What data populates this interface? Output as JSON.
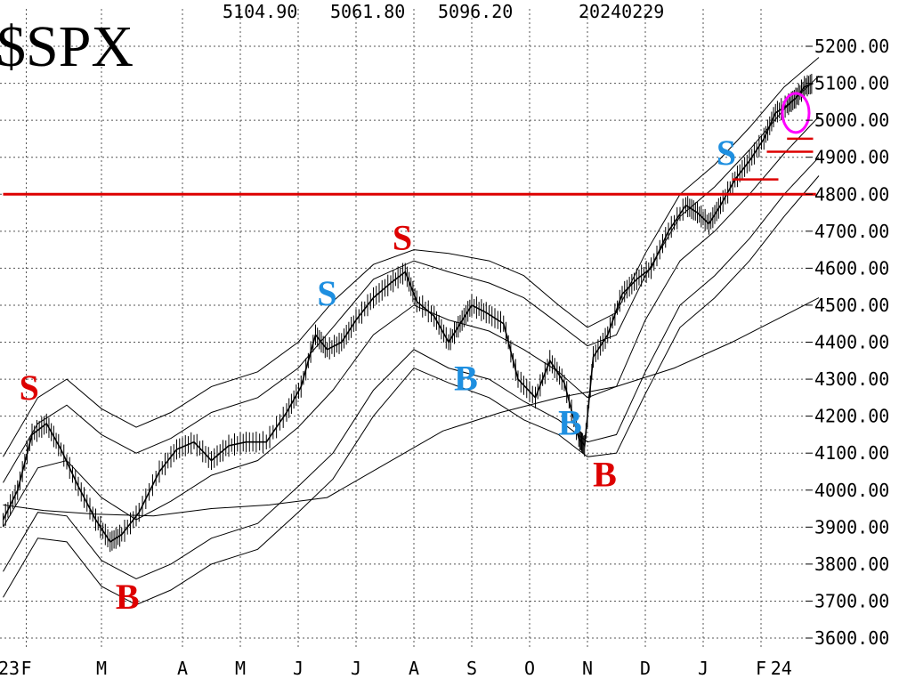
{
  "chart_data": {
    "type": "line",
    "title": "$SPX",
    "header": {
      "high": "5104.90",
      "low": "5061.80",
      "close": "5096.20",
      "date": "20240229"
    },
    "y_ticks": [
      "5200.00",
      "5100.00",
      "5000.00",
      "4900.00",
      "4800.00",
      "4700.00",
      "4600.00",
      "4500.00",
      "4400.00",
      "4300.00",
      "4200.00",
      "4100.00",
      "4000.00",
      "3900.00",
      "3800.00",
      "3700.00",
      "3600.00"
    ],
    "ylim": [
      3600,
      5200
    ],
    "log_scale": false,
    "grid": true,
    "x_ticks": [
      {
        "label": "23",
        "month": 0.0
      },
      {
        "label": "F",
        "month": 0.3
      },
      {
        "label": "M",
        "month": 1.6
      },
      {
        "label": "A",
        "month": 3.0
      },
      {
        "label": "M",
        "month": 4.0
      },
      {
        "label": "J",
        "month": 5.0
      },
      {
        "label": "J",
        "month": 6.0
      },
      {
        "label": "A",
        "month": 7.0
      },
      {
        "label": "S",
        "month": 8.0
      },
      {
        "label": "O",
        "month": 9.0
      },
      {
        "label": "N",
        "month": 10.0
      },
      {
        "label": "D",
        "month": 11.0
      },
      {
        "label": "J",
        "month": 12.0
      },
      {
        "label": "F",
        "month": 13.0
      },
      {
        "label": "24",
        "month": 13.35
      }
    ],
    "xlim": [
      -0.1,
      14.0
    ],
    "series": [
      {
        "role": "price",
        "color": "#000000",
        "points": [
          [
            -0.1,
            3920
          ],
          [
            0.15,
            4000
          ],
          [
            0.4,
            4150
          ],
          [
            0.65,
            4180
          ],
          [
            0.9,
            4110
          ],
          [
            1.2,
            4010
          ],
          [
            1.5,
            3920
          ],
          [
            1.75,
            3860
          ],
          [
            1.95,
            3880
          ],
          [
            2.25,
            3940
          ],
          [
            2.6,
            4050
          ],
          [
            2.9,
            4110
          ],
          [
            3.2,
            4130
          ],
          [
            3.5,
            4080
          ],
          [
            3.8,
            4120
          ],
          [
            4.1,
            4130
          ],
          [
            4.45,
            4130
          ],
          [
            4.8,
            4210
          ],
          [
            5.05,
            4280
          ],
          [
            5.3,
            4420
          ],
          [
            5.5,
            4380
          ],
          [
            5.75,
            4400
          ],
          [
            6.0,
            4460
          ],
          [
            6.3,
            4520
          ],
          [
            6.6,
            4560
          ],
          [
            6.85,
            4590
          ],
          [
            7.05,
            4510
          ],
          [
            7.35,
            4470
          ],
          [
            7.6,
            4400
          ],
          [
            7.8,
            4450
          ],
          [
            8.0,
            4500
          ],
          [
            8.25,
            4480
          ],
          [
            8.55,
            4450
          ],
          [
            8.8,
            4300
          ],
          [
            9.1,
            4250
          ],
          [
            9.35,
            4350
          ],
          [
            9.6,
            4290
          ],
          [
            9.85,
            4140
          ],
          [
            9.95,
            4120
          ],
          [
            10.1,
            4360
          ],
          [
            10.35,
            4420
          ],
          [
            10.6,
            4530
          ],
          [
            10.85,
            4570
          ],
          [
            11.1,
            4600
          ],
          [
            11.4,
            4700
          ],
          [
            11.7,
            4770
          ],
          [
            11.9,
            4750
          ],
          [
            12.1,
            4720
          ],
          [
            12.3,
            4770
          ],
          [
            12.55,
            4840
          ],
          [
            12.8,
            4890
          ],
          [
            13.05,
            4950
          ],
          [
            13.25,
            5020
          ],
          [
            13.45,
            5040
          ],
          [
            13.6,
            5060
          ],
          [
            13.75,
            5090
          ],
          [
            13.9,
            5100
          ]
        ]
      },
      {
        "role": "200-day moving average",
        "color": "#000000",
        "points": [
          [
            -0.1,
            3960
          ],
          [
            0.6,
            3945
          ],
          [
            1.5,
            3935
          ],
          [
            2.5,
            3930
          ],
          [
            3.5,
            3950
          ],
          [
            4.5,
            3960
          ],
          [
            5.5,
            3980
          ],
          [
            6.5,
            4070
          ],
          [
            7.5,
            4160
          ],
          [
            8.5,
            4210
          ],
          [
            9.5,
            4250
          ],
          [
            10.5,
            4280
          ],
          [
            11.5,
            4330
          ],
          [
            12.5,
            4400
          ],
          [
            13.5,
            4480
          ],
          [
            14.0,
            4520
          ]
        ]
      },
      {
        "role": "moving average (middle band)",
        "color": "#000000",
        "points": [
          [
            -0.1,
            3900
          ],
          [
            0.5,
            4060
          ],
          [
            1.0,
            4080
          ],
          [
            1.6,
            3980
          ],
          [
            2.2,
            3920
          ],
          [
            2.8,
            3970
          ],
          [
            3.5,
            4040
          ],
          [
            4.3,
            4080
          ],
          [
            5.0,
            4170
          ],
          [
            5.6,
            4270
          ],
          [
            6.3,
            4420
          ],
          [
            7.0,
            4500
          ],
          [
            7.6,
            4460
          ],
          [
            8.3,
            4430
          ],
          [
            8.9,
            4380
          ],
          [
            9.5,
            4320
          ],
          [
            10.0,
            4250
          ],
          [
            10.5,
            4280
          ],
          [
            11.0,
            4460
          ],
          [
            11.6,
            4620
          ],
          [
            12.2,
            4700
          ],
          [
            12.8,
            4800
          ],
          [
            13.4,
            4910
          ],
          [
            14.0,
            5010
          ]
        ]
      },
      {
        "role": "upper band 1",
        "color": "#000000",
        "points": [
          [
            -0.1,
            4020
          ],
          [
            0.5,
            4180
          ],
          [
            1.0,
            4230
          ],
          [
            1.6,
            4150
          ],
          [
            2.2,
            4100
          ],
          [
            2.8,
            4140
          ],
          [
            3.5,
            4210
          ],
          [
            4.3,
            4250
          ],
          [
            5.0,
            4330
          ],
          [
            5.6,
            4440
          ],
          [
            6.3,
            4570
          ],
          [
            7.0,
            4620
          ],
          [
            7.6,
            4590
          ],
          [
            8.3,
            4560
          ],
          [
            8.9,
            4520
          ],
          [
            9.5,
            4450
          ],
          [
            10.0,
            4390
          ],
          [
            10.5,
            4420
          ],
          [
            11.0,
            4580
          ],
          [
            11.6,
            4740
          ],
          [
            12.2,
            4820
          ],
          [
            12.8,
            4920
          ],
          [
            13.4,
            5030
          ],
          [
            14.0,
            5120
          ]
        ]
      },
      {
        "role": "upper band 2",
        "color": "#000000",
        "points": [
          [
            -0.1,
            4090
          ],
          [
            0.5,
            4250
          ],
          [
            1.0,
            4300
          ],
          [
            1.6,
            4220
          ],
          [
            2.2,
            4170
          ],
          [
            2.8,
            4210
          ],
          [
            3.5,
            4280
          ],
          [
            4.3,
            4320
          ],
          [
            5.0,
            4400
          ],
          [
            5.6,
            4510
          ],
          [
            6.3,
            4610
          ],
          [
            7.0,
            4650
          ],
          [
            7.6,
            4640
          ],
          [
            8.3,
            4620
          ],
          [
            8.9,
            4580
          ],
          [
            9.5,
            4500
          ],
          [
            10.0,
            4440
          ],
          [
            10.5,
            4480
          ],
          [
            11.0,
            4640
          ],
          [
            11.6,
            4800
          ],
          [
            12.2,
            4880
          ],
          [
            12.8,
            4980
          ],
          [
            13.4,
            5090
          ],
          [
            14.0,
            5170
          ]
        ]
      },
      {
        "role": "lower band 1",
        "color": "#000000",
        "points": [
          [
            -0.1,
            3780
          ],
          [
            0.5,
            3940
          ],
          [
            1.0,
            3930
          ],
          [
            1.6,
            3810
          ],
          [
            2.2,
            3760
          ],
          [
            2.8,
            3800
          ],
          [
            3.5,
            3870
          ],
          [
            4.3,
            3910
          ],
          [
            5.0,
            4010
          ],
          [
            5.6,
            4100
          ],
          [
            6.3,
            4270
          ],
          [
            7.0,
            4380
          ],
          [
            7.6,
            4330
          ],
          [
            8.3,
            4300
          ],
          [
            8.9,
            4240
          ],
          [
            9.5,
            4190
          ],
          [
            10.0,
            4130
          ],
          [
            10.5,
            4150
          ],
          [
            11.0,
            4320
          ],
          [
            11.6,
            4500
          ],
          [
            12.2,
            4580
          ],
          [
            12.8,
            4680
          ],
          [
            13.4,
            4800
          ],
          [
            14.0,
            4900
          ]
        ]
      },
      {
        "role": "lower band 2",
        "color": "#000000",
        "points": [
          [
            -0.1,
            3710
          ],
          [
            0.5,
            3870
          ],
          [
            1.0,
            3860
          ],
          [
            1.6,
            3740
          ],
          [
            2.2,
            3690
          ],
          [
            2.8,
            3730
          ],
          [
            3.5,
            3800
          ],
          [
            4.3,
            3840
          ],
          [
            5.0,
            3940
          ],
          [
            5.6,
            4030
          ],
          [
            6.3,
            4200
          ],
          [
            7.0,
            4330
          ],
          [
            7.6,
            4290
          ],
          [
            8.3,
            4250
          ],
          [
            8.9,
            4190
          ],
          [
            9.5,
            4150
          ],
          [
            10.0,
            4090
          ],
          [
            10.5,
            4100
          ],
          [
            11.0,
            4260
          ],
          [
            11.6,
            4440
          ],
          [
            12.2,
            4520
          ],
          [
            12.8,
            4620
          ],
          [
            13.4,
            4740
          ],
          [
            14.0,
            4850
          ]
        ]
      }
    ],
    "reference_lines": [
      {
        "y": 4800,
        "color": "#dd0000",
        "x_start": -0.1,
        "x_end": 13.95
      },
      {
        "y": 4950,
        "color": "#dd0000",
        "x_start": 13.45,
        "x_end": 13.9
      },
      {
        "y": 4915,
        "color": "#dd0000",
        "x_start": 13.1,
        "x_end": 13.9
      },
      {
        "y": 4840,
        "color": "#dd0000",
        "x_start": 12.5,
        "x_end": 13.3
      }
    ],
    "annotations": [
      {
        "text": "S",
        "color": "#dd0000",
        "month": 0.35,
        "value": 4245
      },
      {
        "text": "B",
        "color": "#dd0000",
        "month": 2.05,
        "value": 3680
      },
      {
        "text": "S",
        "color": "#1e8fe0",
        "month": 5.5,
        "value": 4500
      },
      {
        "text": "S",
        "color": "#dd0000",
        "month": 6.8,
        "value": 4650
      },
      {
        "text": "B",
        "color": "#1e8fe0",
        "month": 7.9,
        "value": 4270
      },
      {
        "text": "B",
        "color": "#1e8fe0",
        "month": 9.7,
        "value": 4150
      },
      {
        "text": "B",
        "color": "#dd0000",
        "month": 10.3,
        "value": 4010
      },
      {
        "text": "S",
        "color": "#1e8fe0",
        "month": 12.4,
        "value": 4880
      }
    ],
    "highlight_circle": {
      "color": "#ff00ff",
      "month": 13.6,
      "value": 5020
    }
  }
}
